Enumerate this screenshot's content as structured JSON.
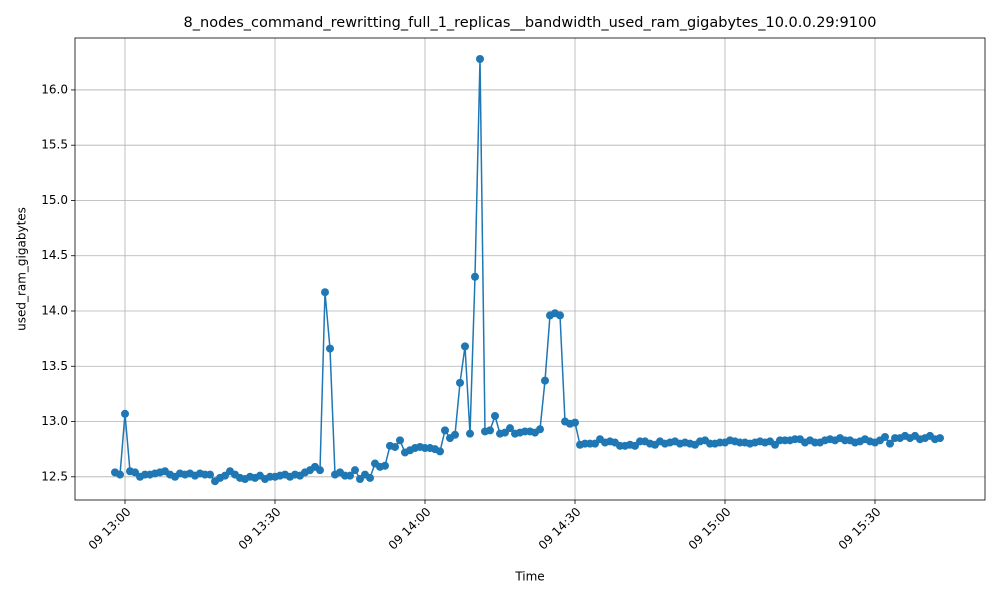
{
  "chart_data": {
    "type": "line",
    "title": "8_nodes_command_rewritting_full_1_replicas__bandwidth_used_ram_gigabytes_10.0.0.29:9100",
    "x_label": "Time",
    "y_label": "used_ram_gigabytes",
    "x": [
      "09 12:58",
      "09 12:59",
      "09 13:00",
      "09 13:01",
      "09 13:02",
      "09 13:03",
      "09 13:04",
      "09 13:05",
      "09 13:06",
      "09 13:07",
      "09 13:08",
      "09 13:09",
      "09 13:10",
      "09 13:11",
      "09 13:12",
      "09 13:13",
      "09 13:14",
      "09 13:15",
      "09 13:16",
      "09 13:17",
      "09 13:18",
      "09 13:19",
      "09 13:20",
      "09 13:21",
      "09 13:22",
      "09 13:23",
      "09 13:24",
      "09 13:25",
      "09 13:26",
      "09 13:27",
      "09 13:28",
      "09 13:29",
      "09 13:30",
      "09 13:31",
      "09 13:32",
      "09 13:33",
      "09 13:34",
      "09 13:35",
      "09 13:36",
      "09 13:37",
      "09 13:38",
      "09 13:39",
      "09 13:40",
      "09 13:41",
      "09 13:42",
      "09 13:43",
      "09 13:44",
      "09 13:45",
      "09 13:46",
      "09 13:47",
      "09 13:48",
      "09 13:49",
      "09 13:50",
      "09 13:51",
      "09 13:52",
      "09 13:53",
      "09 13:54",
      "09 13:55",
      "09 13:56",
      "09 13:57",
      "09 13:58",
      "09 13:59",
      "09 14:00",
      "09 14:01",
      "09 14:02",
      "09 14:03",
      "09 14:04",
      "09 14:05",
      "09 14:06",
      "09 14:07",
      "09 14:08",
      "09 14:09",
      "09 14:10",
      "09 14:11",
      "09 14:12",
      "09 14:13",
      "09 14:14",
      "09 14:15",
      "09 14:16",
      "09 14:17",
      "09 14:18",
      "09 14:19",
      "09 14:20",
      "09 14:21",
      "09 14:22",
      "09 14:23",
      "09 14:24",
      "09 14:25",
      "09 14:26",
      "09 14:27",
      "09 14:28",
      "09 14:29",
      "09 14:30",
      "09 14:31",
      "09 14:32",
      "09 14:33",
      "09 14:34",
      "09 14:35",
      "09 14:36",
      "09 14:37",
      "09 14:38",
      "09 14:39",
      "09 14:40",
      "09 14:41",
      "09 14:42",
      "09 14:43",
      "09 14:44",
      "09 14:45",
      "09 14:46",
      "09 14:47",
      "09 14:48",
      "09 14:49",
      "09 14:50",
      "09 14:51",
      "09 14:52",
      "09 14:53",
      "09 14:54",
      "09 14:55",
      "09 14:56",
      "09 14:57",
      "09 14:58",
      "09 14:59",
      "09 15:00",
      "09 15:01",
      "09 15:02",
      "09 15:03",
      "09 15:04",
      "09 15:05",
      "09 15:06",
      "09 15:07",
      "09 15:08",
      "09 15:09",
      "09 15:10",
      "09 15:11",
      "09 15:12",
      "09 15:13",
      "09 15:14",
      "09 15:15",
      "09 15:16",
      "09 15:17",
      "09 15:18",
      "09 15:19",
      "09 15:20",
      "09 15:21",
      "09 15:22",
      "09 15:23",
      "09 15:24",
      "09 15:25",
      "09 15:26",
      "09 15:27",
      "09 15:28",
      "09 15:29",
      "09 15:30",
      "09 15:31",
      "09 15:32",
      "09 15:33",
      "09 15:34",
      "09 15:35",
      "09 15:36",
      "09 15:37",
      "09 15:38",
      "09 15:39",
      "09 15:40",
      "09 15:41",
      "09 15:42",
      "09 15:43"
    ],
    "series": [
      {
        "color": "#1f77b4",
        "values": [
          12.54,
          12.52,
          13.07,
          12.55,
          12.54,
          12.5,
          12.52,
          12.52,
          12.53,
          12.54,
          12.55,
          12.52,
          12.5,
          12.53,
          12.52,
          12.53,
          12.51,
          12.53,
          12.52,
          12.52,
          12.46,
          12.49,
          12.51,
          12.55,
          12.52,
          12.49,
          12.48,
          12.5,
          12.49,
          12.51,
          12.48,
          12.5,
          12.5,
          12.51,
          12.52,
          12.5,
          12.52,
          12.51,
          12.54,
          12.56,
          12.59,
          12.56,
          14.17,
          13.66,
          12.52,
          12.54,
          12.51,
          12.51,
          12.56,
          12.48,
          12.52,
          12.49,
          12.62,
          12.59,
          12.6,
          12.78,
          12.77,
          12.83,
          12.72,
          12.74,
          12.76,
          12.77,
          12.76,
          12.76,
          12.75,
          12.73,
          12.92,
          12.85,
          12.88,
          13.35,
          13.68,
          12.89,
          14.31,
          16.28,
          12.91,
          12.92,
          13.05,
          12.89,
          12.9,
          12.94,
          12.89,
          12.9,
          12.91,
          12.91,
          12.9,
          12.93,
          13.37,
          13.96,
          13.98,
          13.96,
          13.0,
          12.98,
          12.99,
          12.79,
          12.8,
          12.8,
          12.8,
          12.84,
          12.81,
          12.82,
          12.81,
          12.78,
          12.78,
          12.79,
          12.78,
          12.82,
          12.82,
          12.8,
          12.79,
          12.82,
          12.8,
          12.81,
          12.82,
          12.8,
          12.81,
          12.8,
          12.79,
          12.82,
          12.83,
          12.8,
          12.8,
          12.81,
          12.81,
          12.83,
          12.82,
          12.81,
          12.81,
          12.8,
          12.81,
          12.82,
          12.81,
          12.82,
          12.79,
          12.83,
          12.83,
          12.83,
          12.84,
          12.84,
          12.81,
          12.83,
          12.81,
          12.81,
          12.83,
          12.84,
          12.83,
          12.85,
          12.83,
          12.83,
          12.81,
          12.82,
          12.84,
          12.82,
          12.81,
          12.83,
          12.86,
          12.8,
          12.85,
          12.85,
          12.87,
          12.85,
          12.87,
          12.84,
          12.85,
          12.87,
          12.84,
          12.85
        ]
      }
    ],
    "xlim": [
      "09 12:50",
      "09 15:52"
    ],
    "xticks": [
      "09 13:00",
      "09 13:30",
      "09 14:00",
      "09 14:30",
      "09 15:00",
      "09 15:30"
    ],
    "ylim": [
      12.29,
      16.47
    ],
    "yticks": [
      12.5,
      {
        "value": 13,
        "label": "13.0"
      },
      13.5,
      {
        "value": 14,
        "label": "14.0"
      },
      14.5,
      {
        "value": 15,
        "label": "15.0"
      },
      15.5,
      {
        "value": 16,
        "label": "16.0"
      }
    ],
    "grid": true
  }
}
